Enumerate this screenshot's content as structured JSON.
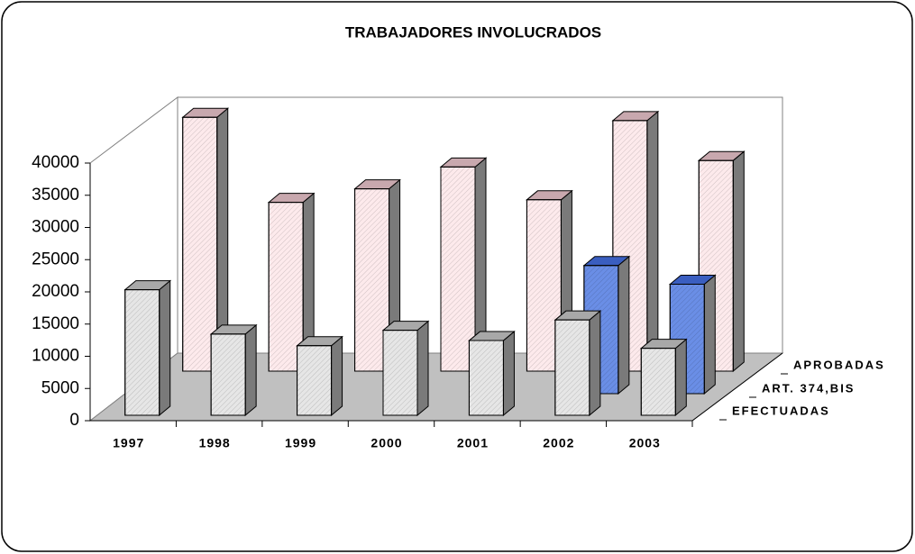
{
  "chart_data": {
    "type": "bar3d",
    "title": "TRABAJADORES INVOLUCRADOS",
    "categories": [
      "1997",
      "1998",
      "1999",
      "2000",
      "2001",
      "2002",
      "2003"
    ],
    "series": [
      {
        "name": "EFECTUADAS",
        "color": "#e6e6e6",
        "values": [
          19500,
          12600,
          10800,
          13200,
          11600,
          14800,
          10400
        ]
      },
      {
        "name": "ART. 374,BIS",
        "color": "#6a8ee6",
        "values": [
          null,
          null,
          null,
          null,
          null,
          19900,
          17000
        ]
      },
      {
        "name": "APROBADAS",
        "color": "#fdeaec",
        "values": [
          39400,
          26200,
          28300,
          31700,
          26600,
          38900,
          32700
        ]
      }
    ],
    "ylim": [
      0,
      40000
    ],
    "yticks": [
      0,
      5000,
      10000,
      15000,
      20000,
      25000,
      30000,
      35000,
      40000
    ]
  }
}
